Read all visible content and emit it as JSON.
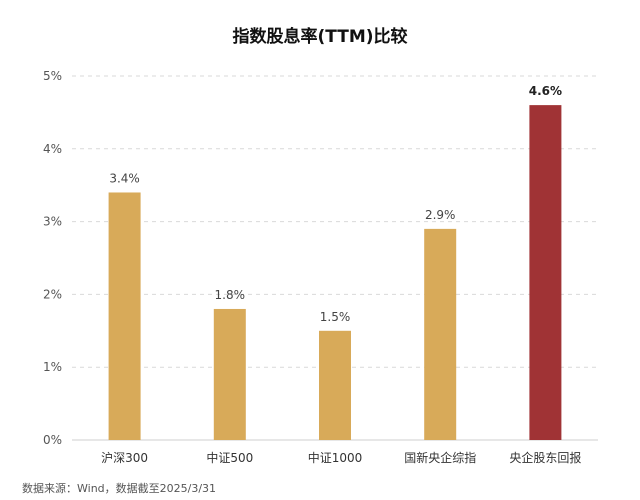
{
  "chart_data": {
    "type": "bar",
    "title": "指数股息率(TTM)比较",
    "xlabel": "",
    "ylabel": "",
    "categories": [
      "沪深300",
      "中证500",
      "中证1000",
      "国新央企综指",
      "央企股东回报"
    ],
    "values": [
      3.4,
      1.8,
      1.5,
      2.9,
      4.6
    ],
    "data_labels": [
      "3.4%",
      "1.8%",
      "1.5%",
      "2.9%",
      "4.6%"
    ],
    "ylim": [
      0,
      5
    ],
    "yticks": [
      0,
      1,
      2,
      3,
      4,
      5
    ],
    "ytick_labels": [
      "0%",
      "1%",
      "2%",
      "3%",
      "4%",
      "5%"
    ],
    "grid": true,
    "bar_colors": [
      "#d8aa59",
      "#d8aa59",
      "#d8aa59",
      "#d8aa59",
      "#a03335"
    ],
    "highlight_index": 4
  },
  "source_note": "数据来源：Wind，数据截至2025/3/31"
}
